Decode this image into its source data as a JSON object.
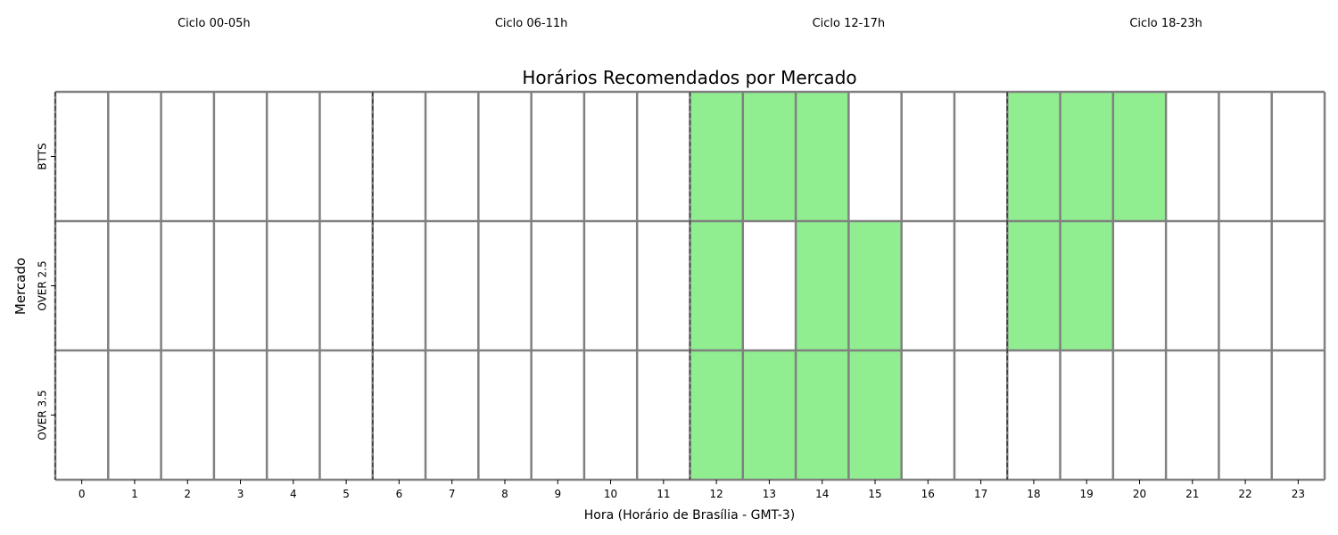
{
  "chart_data": {
    "type": "heatmap",
    "title": "Horários Recomendados por Mercado",
    "xlabel": "Hora (Horário de Brasília - GMT-3)",
    "ylabel": "Mercado",
    "x": [
      0,
      1,
      2,
      3,
      4,
      5,
      6,
      7,
      8,
      9,
      10,
      11,
      12,
      13,
      14,
      15,
      16,
      17,
      18,
      19,
      20,
      21,
      22,
      23
    ],
    "y": [
      "BTTS",
      "OVER 2.5",
      "OVER 3.5"
    ],
    "cycles": [
      {
        "label": "Ciclo 00-05h",
        "start": 0,
        "end": 5
      },
      {
        "label": "Ciclo 06-11h",
        "start": 6,
        "end": 11
      },
      {
        "label": "Ciclo 12-17h",
        "start": 12,
        "end": 17
      },
      {
        "label": "Ciclo 18-23h",
        "start": 18,
        "end": 23
      }
    ],
    "values": [
      [
        0,
        0,
        0,
        0,
        0,
        0,
        0,
        0,
        0,
        0,
        0,
        0,
        1,
        1,
        1,
        0,
        0,
        0,
        1,
        1,
        1,
        0,
        0,
        0
      ],
      [
        0,
        0,
        0,
        0,
        0,
        0,
        0,
        0,
        0,
        0,
        0,
        0,
        1,
        0,
        1,
        1,
        0,
        0,
        1,
        1,
        0,
        0,
        0,
        0
      ],
      [
        0,
        0,
        0,
        0,
        0,
        0,
        0,
        0,
        0,
        0,
        0,
        0,
        1,
        1,
        1,
        1,
        0,
        0,
        0,
        0,
        0,
        0,
        0,
        0
      ]
    ],
    "colors": {
      "recommended": "#90ee90",
      "not_recommended": "#ffffff",
      "grid": "#808080",
      "divider": "#404040"
    },
    "grid": true,
    "legend": "none"
  }
}
